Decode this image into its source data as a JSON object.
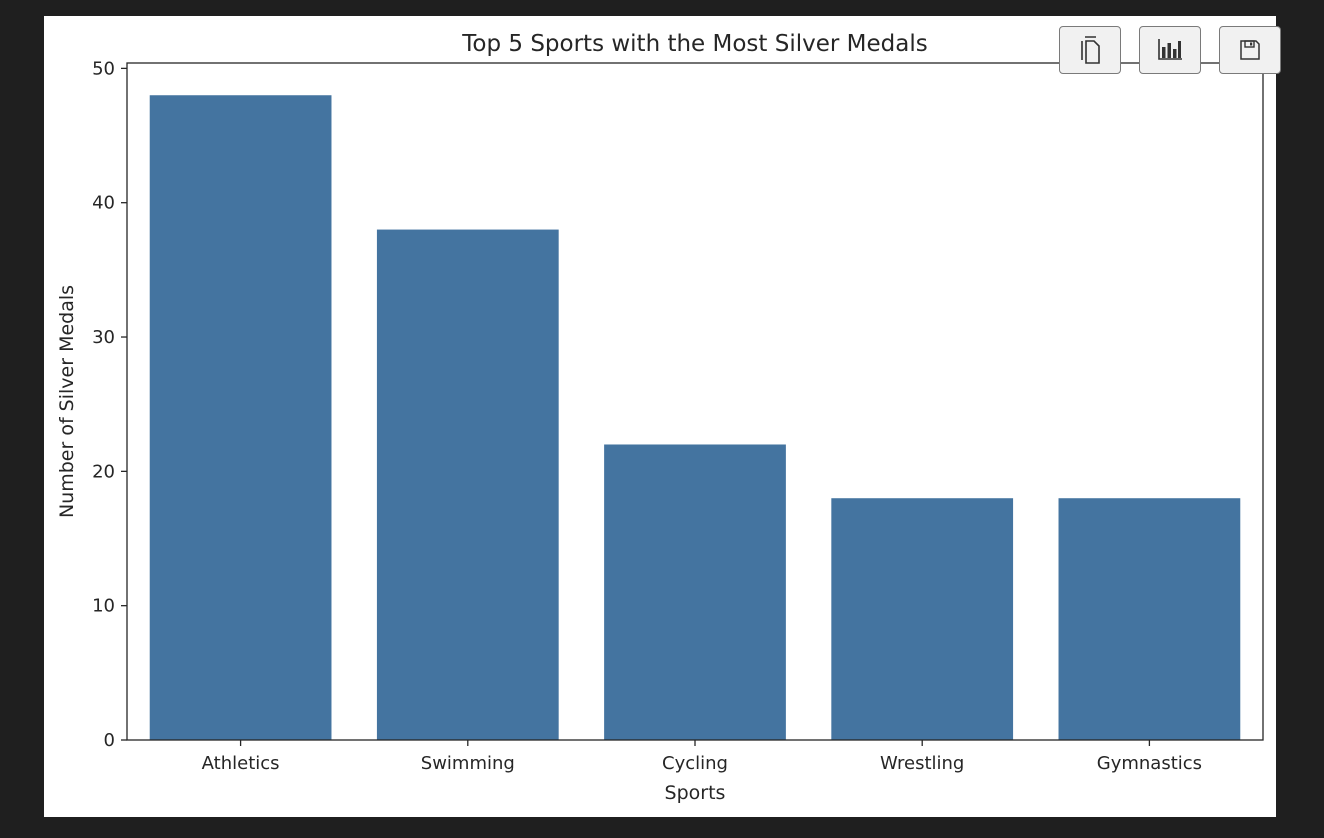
{
  "toolbar": {
    "buttons": [
      {
        "name": "copy-button",
        "icon": "copy-icon"
      },
      {
        "name": "chart-button",
        "icon": "bar-chart-icon"
      },
      {
        "name": "save-button",
        "icon": "floppy-disk-icon"
      }
    ]
  },
  "colors": {
    "bar": "#4474a0",
    "axis": "#262626",
    "background": "#ffffff",
    "page": "#1f1f1f"
  },
  "chart_data": {
    "type": "bar",
    "title": "Top 5 Sports with the Most Silver Medals",
    "xlabel": "Sports",
    "ylabel": "Number of Silver Medals",
    "categories": [
      "Athletics",
      "Swimming",
      "Cycling",
      "Wrestling",
      "Gymnastics"
    ],
    "values": [
      48,
      38,
      22,
      18,
      18
    ],
    "ylim": [
      0,
      50.4
    ],
    "yticks": [
      0,
      10,
      20,
      30,
      40,
      50
    ],
    "grid": false,
    "legend": "none"
  }
}
